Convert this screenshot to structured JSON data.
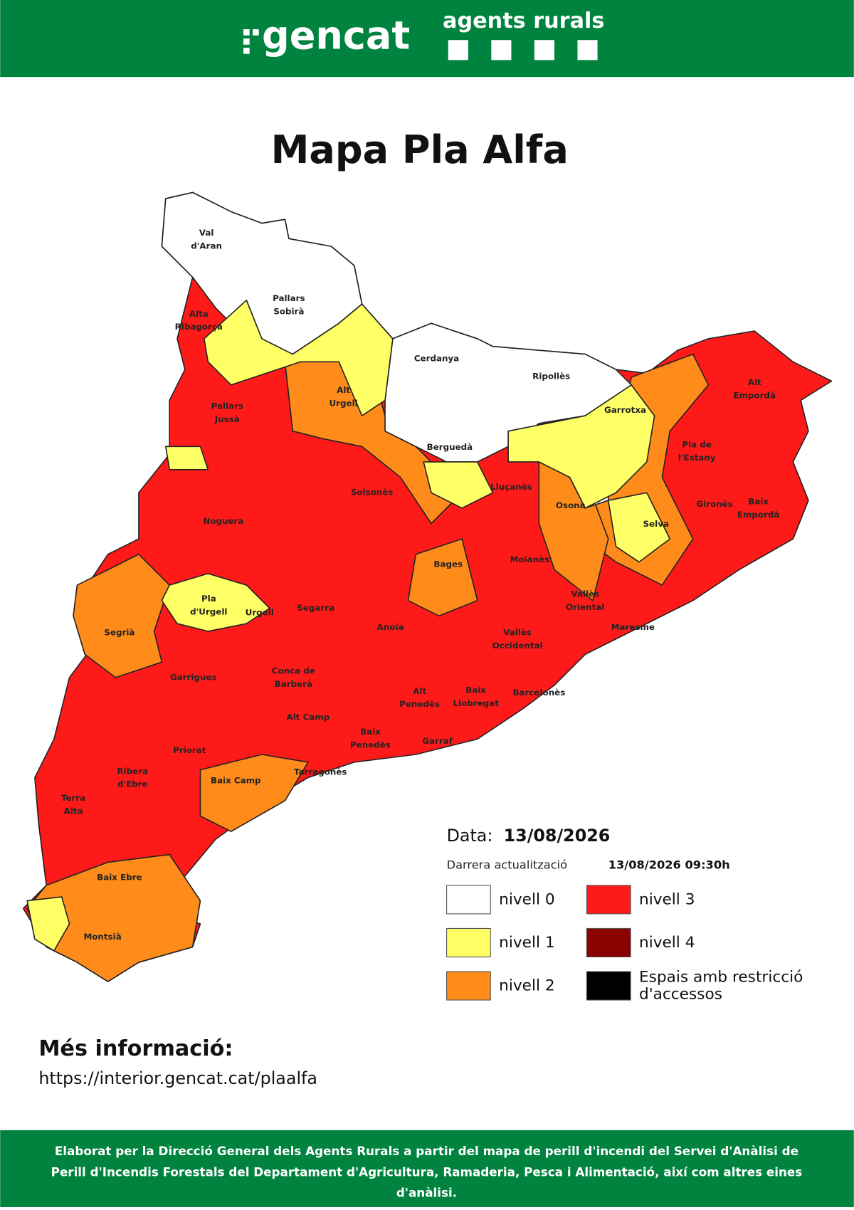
{
  "header": {
    "logo": "gencat",
    "brand": "agents rurals"
  },
  "title": "Mapa Pla Alfa",
  "map": {
    "regions": [
      [
        "Val",
        "d'Aran"
      ],
      [
        "Pallars",
        "Sobirà"
      ],
      [
        "Alta",
        "Ribagorça"
      ],
      [
        "Cerdanya"
      ],
      [
        "Alt",
        "Urgell"
      ],
      [
        "Ripollès"
      ],
      [
        "Alt",
        "Empordà"
      ],
      [
        "Pallars",
        "Jussà"
      ],
      [
        "Garrotxa"
      ],
      [
        "Berguedà"
      ],
      [
        "Pla de",
        "l'Estany"
      ],
      [
        "Solsonès"
      ],
      [
        "Lluçanès"
      ],
      [
        "Osona"
      ],
      [
        "Gironès"
      ],
      [
        "Baix",
        "Empordà"
      ],
      [
        "Noguera"
      ],
      [
        "Selva"
      ],
      [
        "Moianès"
      ],
      [
        "Bages"
      ],
      [
        "Vallès",
        "Oriental"
      ],
      [
        "Segarra"
      ],
      [
        "Pla",
        "d'Urgell"
      ],
      [
        "Urgell"
      ],
      [
        "Segrià"
      ],
      [
        "Anoia"
      ],
      [
        "Maresme"
      ],
      [
        "Vallès",
        "Occidental"
      ],
      [
        "Garrigues"
      ],
      [
        "Conca de",
        "Barberà"
      ],
      [
        "Barcelonès"
      ],
      [
        "Alt",
        "Penedès"
      ],
      [
        "Baix",
        "Llobregat"
      ],
      [
        "Alt Camp"
      ],
      [
        "Baix",
        "Penedès"
      ],
      [
        "Garraf"
      ],
      [
        "Priorat"
      ],
      [
        "Ribera",
        "d'Ebre"
      ],
      [
        "Tarragonès"
      ],
      [
        "Baix Camp"
      ],
      [
        "Terra",
        "Alta"
      ],
      [
        "Baix Ebre"
      ],
      [
        "Montsià"
      ]
    ]
  },
  "legend": {
    "date_label": "Data:",
    "date": "13/08/2026",
    "update_label": "Darrera actualització",
    "update": "13/08/2026 09:30h",
    "items": [
      {
        "label": "nivell 0",
        "color": "#ffffff"
      },
      {
        "label": "nivell 1",
        "color": "#ffff66"
      },
      {
        "label": "nivell 2",
        "color": "#ff8c1a"
      },
      {
        "label": "nivell 3",
        "color": "#ff1a1a"
      },
      {
        "label": "nivell 4",
        "color": "#8b0000"
      },
      {
        "label": [
          "Espais amb restricció",
          "d'accessos"
        ],
        "color": "#000000"
      }
    ]
  },
  "info": {
    "heading": "Més informació:",
    "url": "https://interior.gencat.cat/plaalfa"
  },
  "footer": [
    "Elaborat per la Direcció General dels Agents Rurals a partir del mapa de perill d'incendi del Servei d'Anàlisi de",
    "Perill d'Incendis Forestals del Departament d'Agricultura, Ramaderia, Pesca i Alimentació, així com altres eines",
    "d'anàlisi."
  ]
}
